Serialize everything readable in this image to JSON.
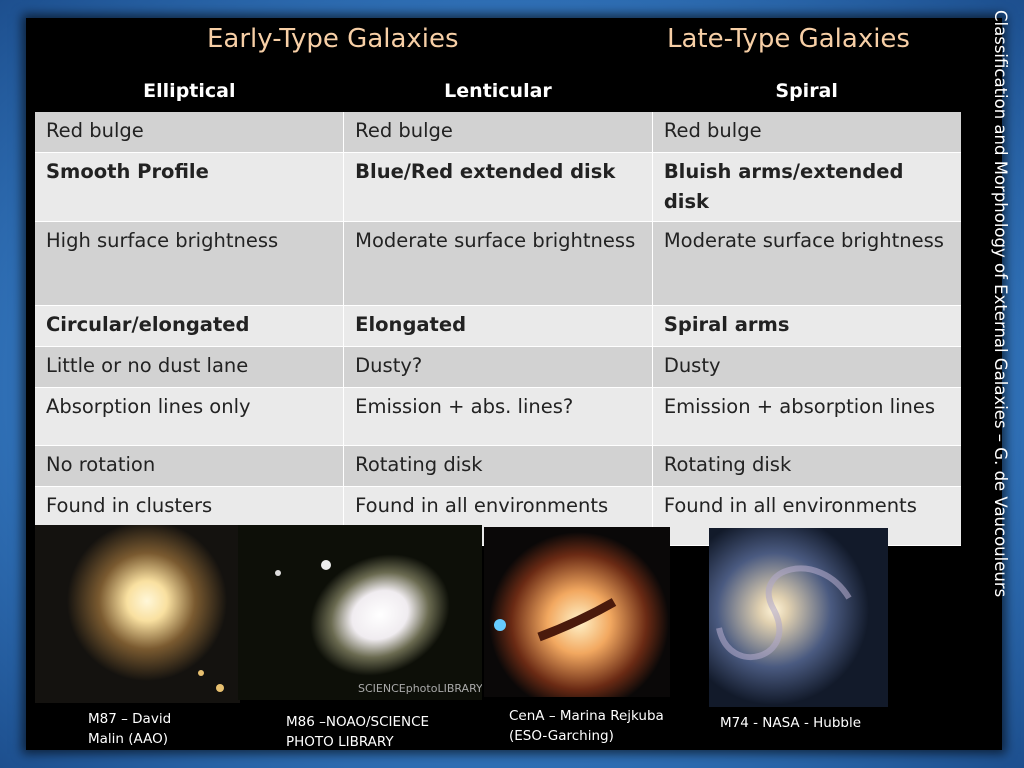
{
  "header": {
    "left_title": "Early-Type Galaxies",
    "right_title": "Late-Type Galaxies"
  },
  "side_text": "Classification and  Morphology of External Galaxies – G. de Vaucouleurs",
  "table": {
    "columns": [
      "Elliptical",
      "Lenticular",
      "Spiral"
    ],
    "rows": [
      [
        "Red bulge",
        "Red bulge",
        "Red bulge"
      ],
      [
        "Smooth Profile",
        "Blue/Red extended disk",
        "Bluish arms/extended disk"
      ],
      [
        "High surface brightness",
        "Moderate surface brightness",
        "Moderate surface brightness"
      ],
      [
        "Circular/elongated",
        "Elongated",
        "Spiral arms"
      ],
      [
        "Little or no dust lane",
        "Dusty?",
        "Dusty"
      ],
      [
        "Absorption lines only",
        "Emission + abs. lines?",
        "Emission + absorption lines"
      ],
      [
        "No rotation",
        "Rotating disk",
        "Rotating disk"
      ],
      [
        "Found in clusters",
        "Found in all environments",
        "Found in all environments"
      ]
    ]
  },
  "images": [
    {
      "caption": "M87 – David Malin (AAO)"
    },
    {
      "caption": "M86 –NOAO/SCIENCE PHOTO LIBRARY",
      "watermark": "SCIENCEphotoLIBRARY"
    },
    {
      "caption": "CenA – Marina Rejkuba (ESO-Garching)"
    },
    {
      "caption": "M74 - NASA - Hubble"
    }
  ]
}
